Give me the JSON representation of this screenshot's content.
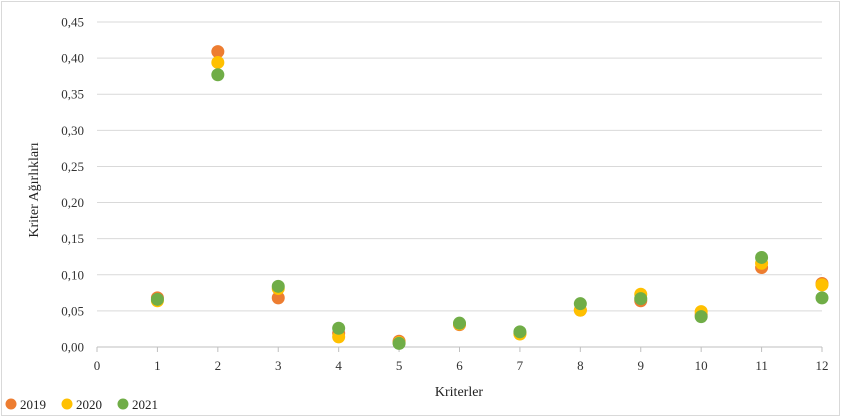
{
  "chart_data": {
    "type": "scatter",
    "xlabel": "Kriterler",
    "ylabel": "Kriter Ağırlıkları",
    "xlim": [
      0,
      12
    ],
    "ylim": [
      0,
      0.45
    ],
    "x_ticks": [
      "0",
      "1",
      "2",
      "3",
      "4",
      "5",
      "6",
      "7",
      "8",
      "9",
      "10",
      "11",
      "12"
    ],
    "y_ticks": [
      "0,00",
      "0,05",
      "0,10",
      "0,15",
      "0,20",
      "0,25",
      "0,30",
      "0,35",
      "0,40",
      "0,45"
    ],
    "grid": "horizontal",
    "legend_position": "bottom-left",
    "series": [
      {
        "name": "2019",
        "color": "#ED7D31",
        "x": [
          1,
          2,
          3,
          4,
          5,
          6,
          7,
          8,
          9,
          10,
          11,
          12
        ],
        "values": [
          0.068,
          0.409,
          0.068,
          0.019,
          0.008,
          0.031,
          0.019,
          0.051,
          0.064,
          0.045,
          0.11,
          0.088
        ]
      },
      {
        "name": "2020",
        "color": "#FFC000",
        "x": [
          1,
          2,
          3,
          4,
          5,
          6,
          7,
          8,
          9,
          10,
          11,
          12
        ],
        "values": [
          0.064,
          0.394,
          0.081,
          0.014,
          0.006,
          0.032,
          0.018,
          0.051,
          0.073,
          0.049,
          0.116,
          0.086
        ]
      },
      {
        "name": "2021",
        "color": "#70AD47",
        "x": [
          1,
          2,
          3,
          4,
          5,
          6,
          7,
          8,
          9,
          10,
          11,
          12
        ],
        "values": [
          0.066,
          0.377,
          0.084,
          0.026,
          0.005,
          0.033,
          0.021,
          0.06,
          0.067,
          0.042,
          0.124,
          0.068
        ]
      }
    ]
  }
}
